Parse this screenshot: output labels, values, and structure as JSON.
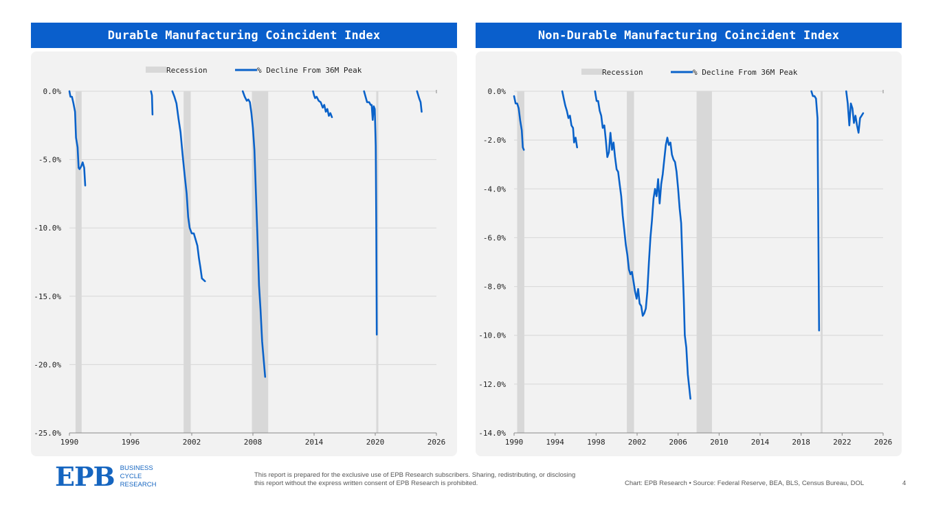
{
  "panels": [
    {
      "title": "Durable Manufacturing Coincident Index"
    },
    {
      "title": "Non-Durable Manufacturing Coincident Index"
    }
  ],
  "footer": {
    "logo": "EPB",
    "logo_words": [
      "BUSINESS",
      "CYCLE",
      "RESEARCH"
    ],
    "disclaimer": "This report is prepared for the exclusive use of EPB Research subscribers. Sharing, redistributing, or disclosing this report without the express written consent of EPB Research is prohibited.",
    "source": "Chart: EPB Research  •  Source: Federal Reserve, BEA, BLS, Census Bureau, DOL",
    "page": "4"
  },
  "colors": {
    "line": "#0a62c9",
    "recession": "#d8d8d8",
    "header": "#0a5fcc"
  },
  "chart_data": [
    {
      "type": "line",
      "title": "Durable Manufacturing Coincident Index",
      "legend": [
        "Recession",
        "% Decline From 36M Peak"
      ],
      "legend_position": "top-center",
      "xlim": [
        1990,
        2026
      ],
      "xticks": [
        1990,
        1996,
        2002,
        2008,
        2014,
        2020,
        2026
      ],
      "ylim": [
        -25,
        0
      ],
      "yticks": [
        0,
        -5,
        -10,
        -15,
        -20,
        -25
      ],
      "ytick_labels": [
        "0.0%",
        "-5.0%",
        "-10.0%",
        "-15.0%",
        "-20.0%",
        "-25.0%"
      ],
      "grid": true,
      "recessions": [
        [
          1990.6,
          1991.2
        ],
        [
          2001.2,
          2001.9
        ],
        [
          2007.9,
          2009.5
        ],
        [
          2020.1,
          2020.3
        ]
      ],
      "series": [
        {
          "name": "% Decline From 36M Peak",
          "segments": [
            [
              [
                1990.0,
                0
              ],
              [
                1990.1,
                -0.4
              ],
              [
                1990.25,
                -0.4
              ],
              [
                1990.4,
                -0.9
              ],
              [
                1990.55,
                -1.5
              ],
              [
                1990.65,
                -3.4
              ],
              [
                1990.8,
                -4.1
              ],
              [
                1990.9,
                -5.6
              ],
              [
                1991.0,
                -5.7
              ],
              [
                1991.15,
                -5.5
              ],
              [
                1991.3,
                -5.2
              ],
              [
                1991.45,
                -5.6
              ],
              [
                1991.55,
                -6.9
              ]
            ],
            [
              [
                1998.0,
                0
              ],
              [
                1998.1,
                -0.3
              ],
              [
                1998.15,
                -1.7
              ]
            ],
            [
              [
                2000.1,
                0
              ],
              [
                2000.3,
                -0.4
              ],
              [
                2000.5,
                -0.9
              ],
              [
                2000.7,
                -2.0
              ],
              [
                2000.9,
                -3.0
              ],
              [
                2001.1,
                -4.6
              ],
              [
                2001.3,
                -6.1
              ],
              [
                2001.5,
                -7.5
              ],
              [
                2001.65,
                -9.2
              ],
              [
                2001.8,
                -10.0
              ],
              [
                2002.0,
                -10.4
              ],
              [
                2002.2,
                -10.4
              ],
              [
                2002.4,
                -10.9
              ],
              [
                2002.55,
                -11.3
              ],
              [
                2002.7,
                -12.2
              ],
              [
                2002.85,
                -12.9
              ],
              [
                2003.0,
                -13.7
              ],
              [
                2003.15,
                -13.8
              ],
              [
                2003.3,
                -13.9
              ]
            ],
            [
              [
                2007.0,
                0
              ],
              [
                2007.2,
                -0.4
              ],
              [
                2007.4,
                -0.7
              ],
              [
                2007.55,
                -0.6
              ],
              [
                2007.7,
                -0.8
              ],
              [
                2007.85,
                -1.6
              ],
              [
                2008.0,
                -2.7
              ],
              [
                2008.15,
                -4.3
              ],
              [
                2008.3,
                -7.5
              ],
              [
                2008.45,
                -10.8
              ],
              [
                2008.6,
                -14.2
              ],
              [
                2008.75,
                -16.0
              ],
              [
                2008.9,
                -18.3
              ],
              [
                2009.05,
                -19.6
              ],
              [
                2009.2,
                -20.9
              ]
            ],
            [
              [
                2013.9,
                0
              ],
              [
                2014.0,
                -0.3
              ],
              [
                2014.1,
                -0.5
              ],
              [
                2014.25,
                -0.4
              ],
              [
                2014.45,
                -0.7
              ],
              [
                2014.65,
                -0.8
              ],
              [
                2014.85,
                -1.2
              ],
              [
                2015.0,
                -1.0
              ],
              [
                2015.15,
                -1.5
              ],
              [
                2015.3,
                -1.3
              ],
              [
                2015.45,
                -1.8
              ],
              [
                2015.6,
                -1.6
              ],
              [
                2015.75,
                -1.9
              ]
            ],
            [
              [
                2018.9,
                0
              ],
              [
                2019.05,
                -0.4
              ],
              [
                2019.2,
                -0.8
              ],
              [
                2019.4,
                -0.8
              ],
              [
                2019.55,
                -1.0
              ],
              [
                2019.65,
                -1.0
              ],
              [
                2019.75,
                -2.1
              ],
              [
                2019.85,
                -1.1
              ],
              [
                2019.95,
                -1.3
              ],
              [
                2020.05,
                -4.0
              ],
              [
                2020.1,
                -10.0
              ],
              [
                2020.15,
                -17.8
              ]
            ],
            [
              [
                2024.1,
                0
              ],
              [
                2024.3,
                -0.5
              ],
              [
                2024.45,
                -0.8
              ],
              [
                2024.55,
                -1.5
              ]
            ]
          ]
        }
      ]
    },
    {
      "type": "line",
      "title": "Non-Durable Manufacturing Coincident Index",
      "legend": [
        "Recession",
        "% Decline From 36M Peak"
      ],
      "legend_position": "top-center",
      "xlim": [
        1990,
        2026
      ],
      "xticks": [
        1990,
        1994,
        1998,
        2002,
        2006,
        2010,
        2014,
        2018,
        2022,
        2026
      ],
      "ylim": [
        -14,
        0
      ],
      "yticks": [
        0,
        -2,
        -4,
        -6,
        -8,
        -10,
        -12,
        -14
      ],
      "ytick_labels": [
        "0.0%",
        "-2.0%",
        "-4.0%",
        "-6.0%",
        "-8.0%",
        "-10.0%",
        "-12.0%",
        "-14.0%"
      ],
      "grid": true,
      "recessions": [
        [
          1990.3,
          1991.0
        ],
        [
          2001.0,
          2001.7
        ],
        [
          2007.8,
          2009.3
        ],
        [
          2019.9,
          2020.1
        ]
      ],
      "series": [
        {
          "name": "% Decline From 36M Peak",
          "segments": [
            [
              [
                1990.0,
                -0.2
              ],
              [
                1990.15,
                -0.5
              ],
              [
                1990.3,
                -0.5
              ],
              [
                1990.45,
                -0.7
              ],
              [
                1990.6,
                -1.2
              ],
              [
                1990.75,
                -1.6
              ],
              [
                1990.85,
                -2.3
              ],
              [
                1990.95,
                -2.4
              ]
            ],
            [
              [
                1994.7,
                0
              ],
              [
                1994.85,
                -0.3
              ],
              [
                1995.0,
                -0.6
              ],
              [
                1995.15,
                -0.8
              ],
              [
                1995.3,
                -1.1
              ],
              [
                1995.45,
                -1.0
              ],
              [
                1995.6,
                -1.4
              ],
              [
                1995.75,
                -1.5
              ],
              [
                1995.85,
                -2.1
              ],
              [
                1996.0,
                -1.9
              ],
              [
                1996.15,
                -2.3
              ]
            ],
            [
              [
                1997.9,
                0
              ],
              [
                1998.05,
                -0.4
              ],
              [
                1998.2,
                -0.4
              ],
              [
                1998.35,
                -0.8
              ],
              [
                1998.5,
                -1.0
              ],
              [
                1998.65,
                -1.5
              ],
              [
                1998.8,
                -1.4
              ],
              [
                1998.95,
                -2.0
              ],
              [
                1999.1,
                -2.7
              ],
              [
                1999.25,
                -2.5
              ],
              [
                1999.4,
                -1.7
              ],
              [
                1999.55,
                -2.4
              ],
              [
                1999.7,
                -2.1
              ],
              [
                1999.85,
                -2.7
              ],
              [
                2000.0,
                -3.2
              ],
              [
                2000.15,
                -3.3
              ],
              [
                2000.3,
                -3.8
              ],
              [
                2000.45,
                -4.3
              ],
              [
                2000.6,
                -5.1
              ],
              [
                2000.75,
                -5.7
              ],
              [
                2000.9,
                -6.3
              ],
              [
                2001.05,
                -6.7
              ],
              [
                2001.2,
                -7.3
              ],
              [
                2001.35,
                -7.5
              ],
              [
                2001.5,
                -7.4
              ],
              [
                2001.65,
                -7.8
              ],
              [
                2001.8,
                -8.2
              ],
              [
                2001.95,
                -8.5
              ],
              [
                2002.1,
                -8.1
              ],
              [
                2002.25,
                -8.7
              ],
              [
                2002.4,
                -8.8
              ],
              [
                2002.55,
                -9.2
              ],
              [
                2002.7,
                -9.1
              ],
              [
                2002.85,
                -8.9
              ],
              [
                2003.0,
                -8.2
              ],
              [
                2003.15,
                -7.0
              ],
              [
                2003.3,
                -6.0
              ],
              [
                2003.45,
                -5.3
              ],
              [
                2003.6,
                -4.4
              ],
              [
                2003.75,
                -4.0
              ],
              [
                2003.9,
                -4.3
              ],
              [
                2004.05,
                -3.6
              ],
              [
                2004.2,
                -4.6
              ],
              [
                2004.35,
                -3.8
              ],
              [
                2004.5,
                -3.4
              ],
              [
                2004.65,
                -2.8
              ],
              [
                2004.8,
                -2.2
              ],
              [
                2004.95,
                -1.9
              ],
              [
                2005.1,
                -2.2
              ],
              [
                2005.25,
                -2.1
              ],
              [
                2005.4,
                -2.6
              ],
              [
                2005.55,
                -2.8
              ],
              [
                2005.7,
                -2.9
              ],
              [
                2005.85,
                -3.3
              ],
              [
                2006.0,
                -4.0
              ],
              [
                2006.15,
                -4.8
              ],
              [
                2006.3,
                -5.4
              ],
              [
                2006.45,
                -7.3
              ],
              [
                2006.55,
                -8.5
              ],
              [
                2006.65,
                -10.0
              ],
              [
                2006.8,
                -10.5
              ],
              [
                2006.95,
                -11.6
              ],
              [
                2007.1,
                -12.2
              ],
              [
                2007.2,
                -12.6
              ]
            ],
            [
              [
                2019.0,
                0
              ],
              [
                2019.15,
                -0.2
              ],
              [
                2019.3,
                -0.2
              ],
              [
                2019.45,
                -0.3
              ],
              [
                2019.6,
                -1.1
              ],
              [
                2019.75,
                -9.8
              ]
            ],
            [
              [
                2022.4,
                0
              ],
              [
                2022.55,
                -0.5
              ],
              [
                2022.7,
                -1.4
              ],
              [
                2022.85,
                -0.5
              ],
              [
                2023.0,
                -0.7
              ],
              [
                2023.15,
                -1.3
              ],
              [
                2023.3,
                -1.0
              ],
              [
                2023.45,
                -1.4
              ],
              [
                2023.6,
                -1.7
              ],
              [
                2023.75,
                -1.1
              ],
              [
                2023.9,
                -1.0
              ],
              [
                2024.05,
                -0.9
              ]
            ]
          ]
        }
      ]
    }
  ]
}
